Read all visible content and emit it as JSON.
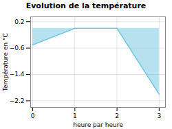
{
  "chart_data": {
    "type": "area",
    "title": "Evolution de la température",
    "ylabel": "Température en °C",
    "xlabel": "heure par heure",
    "x": [
      0,
      1,
      2,
      3
    ],
    "values": [
      -0.5,
      0.0,
      0.0,
      -2.0
    ],
    "color": "#6ec6e0",
    "xlim": [
      -0.05,
      3.15
    ],
    "xticks": [
      0,
      1,
      2,
      3
    ],
    "ylim": [
      -2.4,
      0.35
    ],
    "yticks": [
      0.2,
      -0.6,
      -1.4,
      -2.2
    ],
    "grid": true
  }
}
